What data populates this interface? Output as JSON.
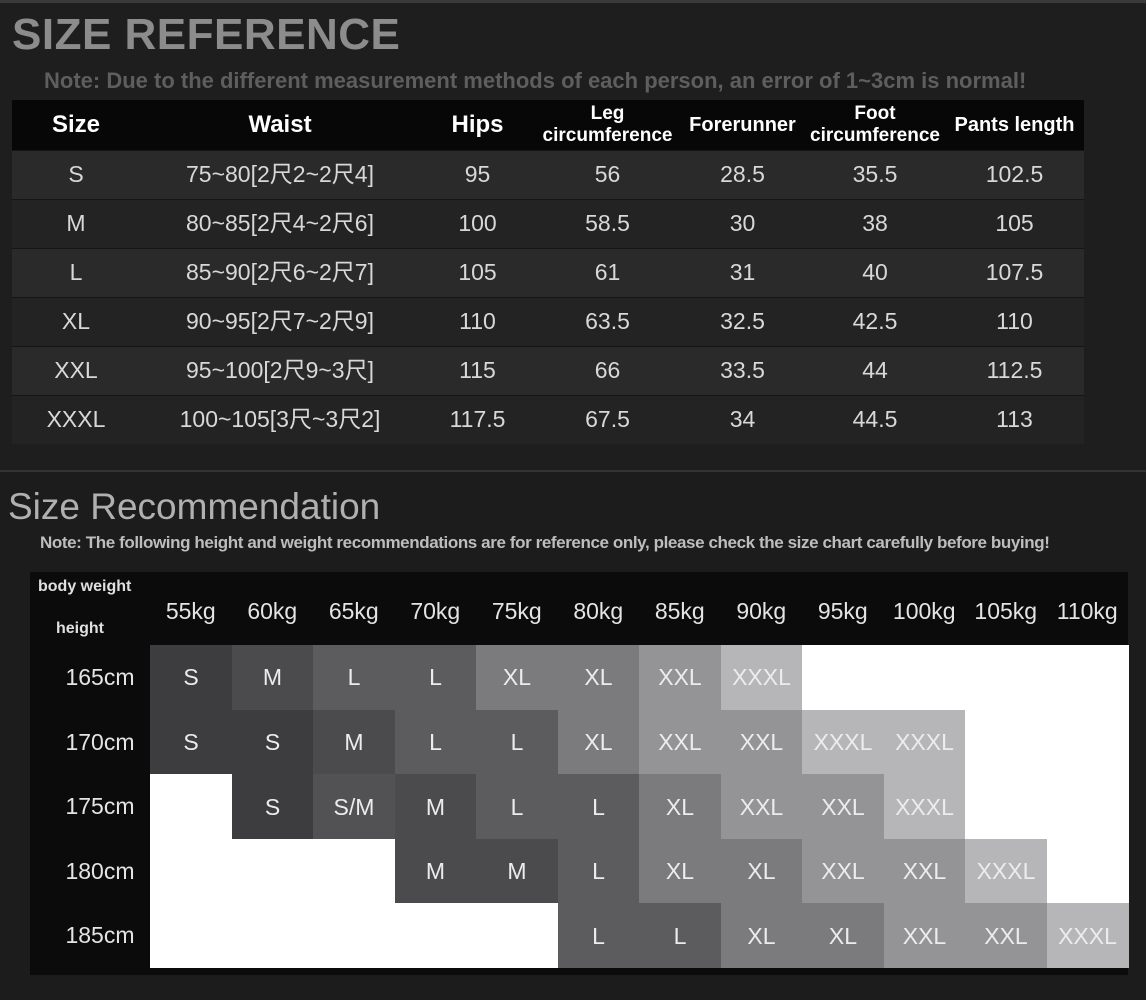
{
  "header": {
    "title": "SIZE REFERENCE",
    "note": "Note: Due to the different measurement methods of each person, an error of 1~3cm is normal!"
  },
  "size_table": {
    "columns": [
      "Size",
      "Waist",
      "Hips",
      "Leg circumference",
      "Forerunner",
      "Foot circumference",
      "Pants length"
    ],
    "rows": [
      [
        "S",
        "75~80[2尺2~2尺4]",
        95,
        56,
        28.5,
        35.5,
        102.5
      ],
      [
        "M",
        "80~85[2尺4~2尺6]",
        100,
        58.5,
        30,
        38,
        105
      ],
      [
        "L",
        "85~90[2尺6~2尺7]",
        105,
        61,
        31,
        40,
        107.5
      ],
      [
        "XL",
        "90~95[2尺7~2尺9]",
        110,
        63.5,
        32.5,
        42.5,
        110
      ],
      [
        "XXL",
        "95~100[2尺9~3尺]",
        115,
        66,
        33.5,
        44,
        112.5
      ],
      [
        "XXXL",
        "100~105[3尺~3尺2]",
        117.5,
        67.5,
        34,
        44.5,
        113
      ]
    ]
  },
  "recommendation": {
    "title": "Size Recommendation",
    "note": "Note: The following height and weight recommendations are for reference only, please check the size chart carefully before buying!",
    "corner_weight": "body weight",
    "corner_height": "height",
    "weights": [
      "55kg",
      "60kg",
      "65kg",
      "70kg",
      "75kg",
      "80kg",
      "85kg",
      "90kg",
      "95kg",
      "100kg",
      "105kg",
      "110kg"
    ],
    "heights": [
      "165cm",
      "170cm",
      "175cm",
      "180cm",
      "185cm"
    ],
    "grid": [
      [
        "S",
        "M",
        "L",
        "L",
        "XL",
        "XL",
        "XXL",
        "XXXL",
        null,
        null,
        null,
        null
      ],
      [
        "S",
        "S",
        "M",
        "L",
        "L",
        "XL",
        "XXL",
        "XXL",
        "XXXL",
        "XXXL",
        null,
        null
      ],
      [
        null,
        "S",
        "S/M",
        "M",
        "L",
        "L",
        "XL",
        "XXL",
        "XXL",
        "XXXL",
        null,
        null
      ],
      [
        null,
        null,
        null,
        "M",
        "M",
        "L",
        "XL",
        "XL",
        "XXL",
        "XXL",
        "XXXL",
        null
      ],
      [
        null,
        null,
        null,
        null,
        null,
        "L",
        "L",
        "XL",
        "XL",
        "XXL",
        "XXL",
        "XXXL"
      ]
    ],
    "colors": {
      "S": "#3d3d3f",
      "M": "#4b4b4d",
      "S/M": "#525254",
      "L": "#5c5c5e",
      "XL": "#7b7b7d",
      "XXL": "#949496",
      "XXXL": "#b6b6b8"
    },
    "empty_color": "#ffffff"
  }
}
